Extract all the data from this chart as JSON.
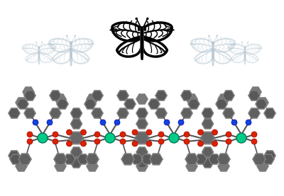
{
  "fig_width": 4.0,
  "fig_height": 2.77,
  "dpi": 100,
  "background_color": "#ffffff",
  "shadow_color": "#a8bcc8",
  "metal_color": "#00cc88",
  "oxygen_color": "#dd2200",
  "nitrogen_color": "#1144dd",
  "carbon_color": "#555555",
  "carbon_light": "#888888",
  "bond_color": "#666666"
}
